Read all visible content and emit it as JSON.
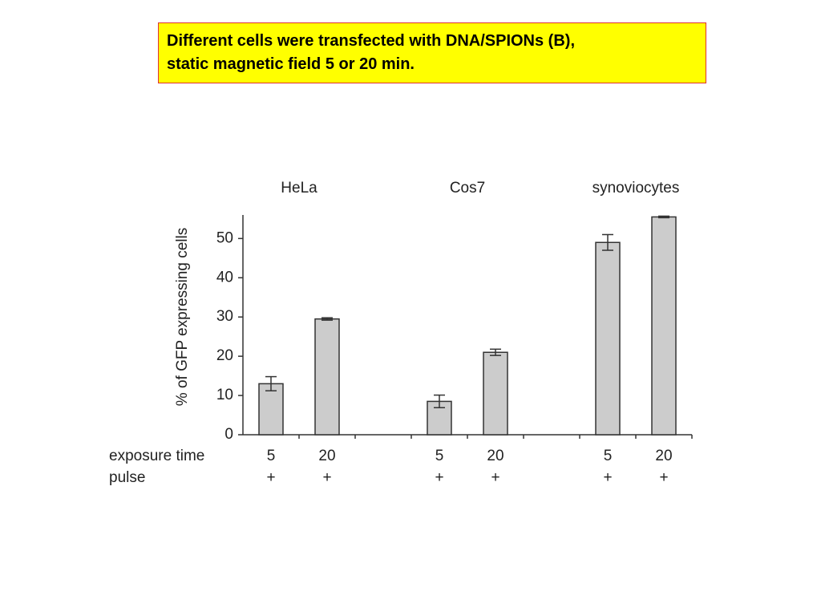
{
  "slide_title": [
    "Different cells were transfected with DNA/SPIONs (B),",
    "static magnetic field 5 or 20 min."
  ],
  "chart_data": {
    "type": "bar",
    "y_label": "% of GFP expressing cells",
    "groups": [
      "HeLa",
      "Cos7",
      "synoviocytes"
    ],
    "row_labels": [
      "exposure time",
      "pulse"
    ],
    "categories": [
      "5",
      "20",
      "5",
      "20",
      "5",
      "20"
    ],
    "pulse": [
      "+",
      "+",
      "+",
      "+",
      "+",
      "+"
    ],
    "values": [
      13,
      29.5,
      8.5,
      21,
      49,
      55.5
    ],
    "errors": [
      1.8,
      0.3,
      1.6,
      0.8,
      2,
      0.2
    ],
    "color": "#cccccc",
    "ylim": [
      0,
      56
    ],
    "yticks": [
      0,
      10,
      20,
      30,
      40,
      50
    ]
  }
}
